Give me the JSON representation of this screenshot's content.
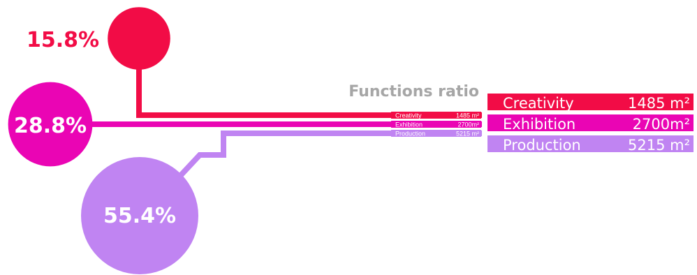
{
  "chart_data": {
    "type": "pie",
    "title": "Functions ratio",
    "unit": "m²",
    "categories": [
      "Creativity",
      "Exhibition",
      "Production"
    ],
    "values": [
      1485,
      2700,
      5215
    ],
    "value_labels": [
      "1485 m²",
      "2700m²",
      "5215 m²"
    ],
    "percent_labels": [
      "15.8%",
      "28.8%",
      "55.4%"
    ],
    "percents": [
      15.8,
      28.8,
      55.4
    ],
    "colors": [
      "#f20c46",
      "#ea05b4",
      "#c084f2"
    ],
    "grid": false,
    "legend": "right"
  }
}
